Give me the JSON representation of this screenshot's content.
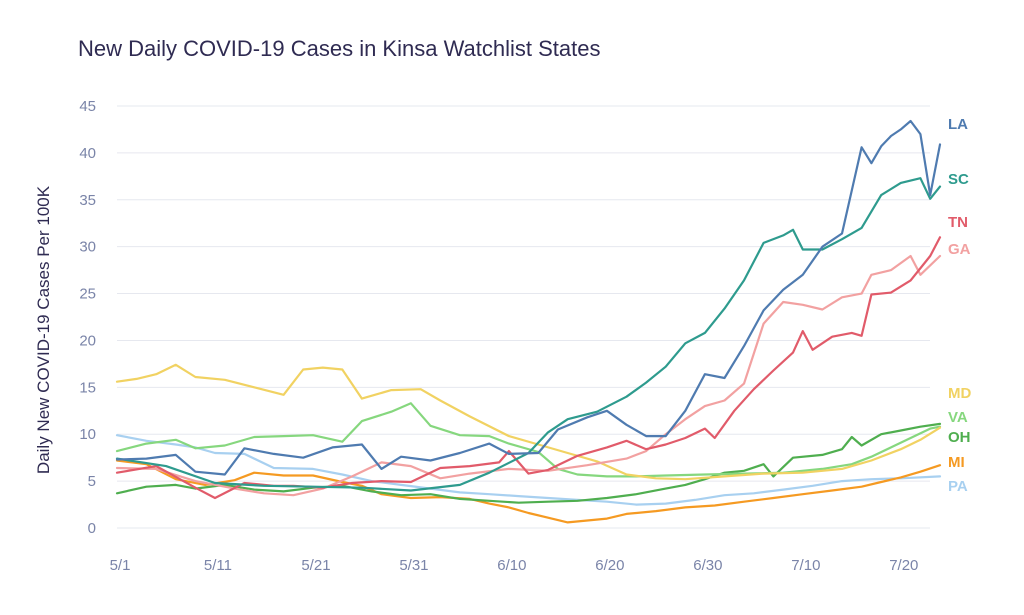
{
  "chart_data": {
    "type": "line",
    "title": "New Daily COVID-19 Cases in Kinsa Watchlist States",
    "xlabel": "",
    "ylabel": "Daily New COVID-19 Cases Per 100K",
    "x_tick_labels": [
      "5/1",
      "5/11",
      "5/21",
      "5/31",
      "6/10",
      "6/20",
      "6/30",
      "7/10",
      "7/20"
    ],
    "x_range_days": [
      0,
      80
    ],
    "ylim": [
      0,
      45
    ],
    "y_ticks": [
      0,
      5,
      10,
      15,
      20,
      25,
      30,
      35,
      40,
      45
    ],
    "grid": "horizontal",
    "legend": "line-end labels",
    "series": [
      {
        "name": "LA",
        "color": "#4f7bb0",
        "points": [
          [
            0,
            7.3
          ],
          [
            3,
            7.4
          ],
          [
            6,
            7.8
          ],
          [
            8,
            6.0
          ],
          [
            11,
            5.7
          ],
          [
            13,
            8.5
          ],
          [
            16,
            7.9
          ],
          [
            19,
            7.5
          ],
          [
            22,
            8.6
          ],
          [
            25,
            8.9
          ],
          [
            27,
            6.3
          ],
          [
            29,
            7.6
          ],
          [
            32,
            7.2
          ],
          [
            35,
            8.0
          ],
          [
            38,
            9.0
          ],
          [
            40,
            7.9
          ],
          [
            43,
            8.0
          ],
          [
            45,
            10.5
          ],
          [
            48,
            11.8
          ],
          [
            50,
            12.5
          ],
          [
            52,
            11.0
          ],
          [
            54,
            9.8
          ],
          [
            56,
            9.8
          ],
          [
            58,
            12.5
          ],
          [
            60,
            16.4
          ],
          [
            62,
            16.0
          ],
          [
            64,
            19.4
          ],
          [
            66,
            23.2
          ],
          [
            68,
            25.4
          ],
          [
            70,
            27.0
          ],
          [
            72,
            30.0
          ],
          [
            74,
            31.4
          ],
          [
            76,
            40.6
          ],
          [
            77,
            38.9
          ],
          [
            78,
            40.7
          ],
          [
            79,
            41.8
          ],
          [
            80,
            42.5
          ],
          [
            81,
            43.4
          ],
          [
            82,
            42.0
          ],
          [
            83,
            35.5
          ],
          [
            84,
            40.9
          ]
        ]
      },
      {
        "name": "SC",
        "color": "#2e9b8e",
        "points": [
          [
            0,
            7.4
          ],
          [
            5,
            6.6
          ],
          [
            10,
            4.8
          ],
          [
            15,
            4.5
          ],
          [
            20,
            4.4
          ],
          [
            25,
            4.3
          ],
          [
            30,
            4.0
          ],
          [
            35,
            4.6
          ],
          [
            38,
            5.9
          ],
          [
            42,
            8.0
          ],
          [
            44,
            10.2
          ],
          [
            46,
            11.6
          ],
          [
            49,
            12.4
          ],
          [
            52,
            14.0
          ],
          [
            54,
            15.5
          ],
          [
            56,
            17.2
          ],
          [
            58,
            19.7
          ],
          [
            60,
            20.8
          ],
          [
            62,
            23.4
          ],
          [
            64,
            26.4
          ],
          [
            66,
            30.4
          ],
          [
            68,
            31.2
          ],
          [
            69,
            31.8
          ],
          [
            70,
            29.7
          ],
          [
            72,
            29.7
          ],
          [
            74,
            30.8
          ],
          [
            76,
            32.0
          ],
          [
            78,
            35.5
          ],
          [
            80,
            36.8
          ],
          [
            82,
            37.3
          ],
          [
            83,
            35.1
          ],
          [
            84,
            36.4
          ]
        ]
      },
      {
        "name": "TN",
        "color": "#e15b6a",
        "points": [
          [
            0,
            5.9
          ],
          [
            4,
            6.6
          ],
          [
            8,
            4.3
          ],
          [
            10,
            3.2
          ],
          [
            13,
            4.8
          ],
          [
            16,
            4.5
          ],
          [
            18,
            4.5
          ],
          [
            21,
            4.3
          ],
          [
            24,
            4.8
          ],
          [
            27,
            5.0
          ],
          [
            30,
            4.9
          ],
          [
            33,
            6.4
          ],
          [
            36,
            6.6
          ],
          [
            39,
            7.0
          ],
          [
            40,
            8.2
          ],
          [
            42,
            5.8
          ],
          [
            44,
            6.2
          ],
          [
            47,
            7.7
          ],
          [
            50,
            8.6
          ],
          [
            52,
            9.3
          ],
          [
            54,
            8.4
          ],
          [
            56,
            8.9
          ],
          [
            58,
            9.6
          ],
          [
            60,
            10.6
          ],
          [
            61,
            9.6
          ],
          [
            63,
            12.5
          ],
          [
            65,
            14.8
          ],
          [
            67,
            16.8
          ],
          [
            69,
            18.7
          ],
          [
            70,
            21.0
          ],
          [
            71,
            19.0
          ],
          [
            73,
            20.4
          ],
          [
            75,
            20.8
          ],
          [
            76,
            20.5
          ],
          [
            77,
            24.9
          ],
          [
            79,
            25.1
          ],
          [
            81,
            26.4
          ],
          [
            83,
            29.0
          ],
          [
            84,
            31.0
          ]
        ]
      },
      {
        "name": "GA",
        "color": "#f2a1a1",
        "points": [
          [
            0,
            6.4
          ],
          [
            4,
            6.3
          ],
          [
            8,
            5.0
          ],
          [
            12,
            4.2
          ],
          [
            15,
            3.7
          ],
          [
            18,
            3.5
          ],
          [
            21,
            4.2
          ],
          [
            24,
            5.5
          ],
          [
            27,
            7.0
          ],
          [
            30,
            6.6
          ],
          [
            33,
            5.3
          ],
          [
            36,
            5.8
          ],
          [
            40,
            6.3
          ],
          [
            44,
            6.1
          ],
          [
            48,
            6.7
          ],
          [
            52,
            7.4
          ],
          [
            54,
            8.2
          ],
          [
            56,
            10.0
          ],
          [
            58,
            11.6
          ],
          [
            60,
            13.0
          ],
          [
            62,
            13.6
          ],
          [
            64,
            15.4
          ],
          [
            66,
            21.8
          ],
          [
            68,
            24.1
          ],
          [
            70,
            23.8
          ],
          [
            72,
            23.3
          ],
          [
            74,
            24.6
          ],
          [
            76,
            25.0
          ],
          [
            77,
            27.0
          ],
          [
            79,
            27.5
          ],
          [
            81,
            29.0
          ],
          [
            82,
            27.0
          ],
          [
            84,
            29.0
          ]
        ]
      },
      {
        "name": "MD",
        "color": "#f1d262",
        "points": [
          [
            0,
            15.6
          ],
          [
            2,
            15.9
          ],
          [
            4,
            16.4
          ],
          [
            6,
            17.4
          ],
          [
            8,
            16.1
          ],
          [
            11,
            15.8
          ],
          [
            14,
            15.0
          ],
          [
            17,
            14.2
          ],
          [
            19,
            16.9
          ],
          [
            21,
            17.1
          ],
          [
            23,
            16.9
          ],
          [
            25,
            13.8
          ],
          [
            28,
            14.7
          ],
          [
            31,
            14.8
          ],
          [
            33,
            13.6
          ],
          [
            36,
            11.9
          ],
          [
            40,
            9.8
          ],
          [
            43,
            8.9
          ],
          [
            46,
            8.0
          ],
          [
            49,
            7.1
          ],
          [
            52,
            5.7
          ],
          [
            55,
            5.3
          ],
          [
            58,
            5.2
          ],
          [
            62,
            5.5
          ],
          [
            66,
            5.8
          ],
          [
            70,
            5.9
          ],
          [
            74,
            6.3
          ],
          [
            77,
            7.2
          ],
          [
            80,
            8.4
          ],
          [
            82,
            9.4
          ],
          [
            84,
            10.7
          ]
        ]
      },
      {
        "name": "VA",
        "color": "#86d77e",
        "points": [
          [
            0,
            8.2
          ],
          [
            3,
            9.0
          ],
          [
            6,
            9.4
          ],
          [
            8,
            8.5
          ],
          [
            11,
            8.8
          ],
          [
            14,
            9.7
          ],
          [
            17,
            9.8
          ],
          [
            20,
            9.9
          ],
          [
            23,
            9.2
          ],
          [
            25,
            11.4
          ],
          [
            28,
            12.4
          ],
          [
            30,
            13.3
          ],
          [
            32,
            10.9
          ],
          [
            35,
            9.9
          ],
          [
            38,
            9.8
          ],
          [
            40,
            9.0
          ],
          [
            43,
            8.1
          ],
          [
            45,
            6.3
          ],
          [
            47,
            5.7
          ],
          [
            50,
            5.5
          ],
          [
            53,
            5.5
          ],
          [
            56,
            5.6
          ],
          [
            60,
            5.7
          ],
          [
            64,
            5.8
          ],
          [
            68,
            5.9
          ],
          [
            72,
            6.3
          ],
          [
            75,
            6.8
          ],
          [
            77,
            7.6
          ],
          [
            79,
            8.6
          ],
          [
            81,
            9.6
          ],
          [
            83,
            10.6
          ],
          [
            84,
            10.8
          ]
        ]
      },
      {
        "name": "OH",
        "color": "#4fae4f",
        "points": [
          [
            0,
            3.7
          ],
          [
            3,
            4.4
          ],
          [
            6,
            4.6
          ],
          [
            8,
            4.2
          ],
          [
            11,
            4.6
          ],
          [
            14,
            4.1
          ],
          [
            17,
            3.9
          ],
          [
            20,
            4.3
          ],
          [
            23,
            4.5
          ],
          [
            26,
            3.9
          ],
          [
            29,
            3.5
          ],
          [
            32,
            3.6
          ],
          [
            35,
            3.1
          ],
          [
            38,
            2.9
          ],
          [
            41,
            2.7
          ],
          [
            44,
            2.8
          ],
          [
            47,
            2.9
          ],
          [
            50,
            3.2
          ],
          [
            53,
            3.6
          ],
          [
            56,
            4.2
          ],
          [
            58,
            4.6
          ],
          [
            60,
            5.2
          ],
          [
            62,
            5.9
          ],
          [
            64,
            6.1
          ],
          [
            66,
            6.8
          ],
          [
            67,
            5.5
          ],
          [
            69,
            7.5
          ],
          [
            72,
            7.8
          ],
          [
            74,
            8.4
          ],
          [
            75,
            9.7
          ],
          [
            76,
            8.8
          ],
          [
            78,
            10.0
          ],
          [
            80,
            10.4
          ],
          [
            82,
            10.8
          ],
          [
            84,
            11.1
          ]
        ]
      },
      {
        "name": "MI",
        "color": "#f59a22",
        "points": [
          [
            0,
            7.2
          ],
          [
            3,
            6.8
          ],
          [
            6,
            5.2
          ],
          [
            9,
            4.6
          ],
          [
            12,
            5.1
          ],
          [
            14,
            5.9
          ],
          [
            17,
            5.6
          ],
          [
            20,
            5.6
          ],
          [
            23,
            4.9
          ],
          [
            25,
            4.5
          ],
          [
            27,
            3.6
          ],
          [
            30,
            3.2
          ],
          [
            33,
            3.3
          ],
          [
            36,
            3.1
          ],
          [
            38,
            2.6
          ],
          [
            40,
            2.2
          ],
          [
            42,
            1.6
          ],
          [
            44,
            1.1
          ],
          [
            46,
            0.6
          ],
          [
            48,
            0.8
          ],
          [
            50,
            1.0
          ],
          [
            52,
            1.5
          ],
          [
            55,
            1.8
          ],
          [
            58,
            2.2
          ],
          [
            61,
            2.4
          ],
          [
            64,
            2.8
          ],
          [
            67,
            3.2
          ],
          [
            70,
            3.6
          ],
          [
            73,
            4.0
          ],
          [
            76,
            4.4
          ],
          [
            78,
            4.9
          ],
          [
            80,
            5.4
          ],
          [
            82,
            6.0
          ],
          [
            84,
            6.7
          ]
        ]
      },
      {
        "name": "PA",
        "color": "#a8d0f0",
        "points": [
          [
            0,
            9.9
          ],
          [
            3,
            9.3
          ],
          [
            6,
            8.9
          ],
          [
            8,
            8.6
          ],
          [
            10,
            8.0
          ],
          [
            13,
            7.9
          ],
          [
            16,
            6.4
          ],
          [
            20,
            6.3
          ],
          [
            23,
            5.7
          ],
          [
            26,
            5.0
          ],
          [
            29,
            4.6
          ],
          [
            32,
            4.2
          ],
          [
            35,
            3.8
          ],
          [
            38,
            3.6
          ],
          [
            41,
            3.4
          ],
          [
            44,
            3.2
          ],
          [
            47,
            3.0
          ],
          [
            50,
            2.8
          ],
          [
            53,
            2.5
          ],
          [
            56,
            2.6
          ],
          [
            59,
            3.0
          ],
          [
            62,
            3.5
          ],
          [
            65,
            3.7
          ],
          [
            68,
            4.1
          ],
          [
            71,
            4.5
          ],
          [
            74,
            5.0
          ],
          [
            77,
            5.2
          ],
          [
            80,
            5.3
          ],
          [
            84,
            5.5
          ]
        ]
      }
    ]
  }
}
